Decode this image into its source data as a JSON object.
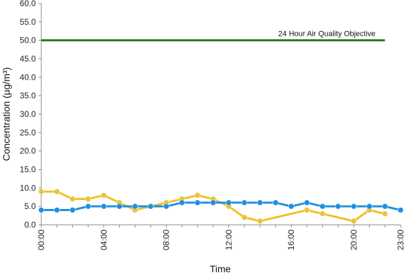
{
  "chart_data": {
    "type": "line",
    "title": "",
    "xlabel": "Time",
    "ylabel": "Concentration (µg/m³)",
    "ylim": [
      0,
      60
    ],
    "xlim": [
      0,
      23
    ],
    "y_ticks": [
      "0.0",
      "5.0",
      "10.0",
      "15.0",
      "20.0",
      "25.0",
      "30.0",
      "35.0",
      "40.0",
      "45.0",
      "50.0",
      "55.0",
      "60.0"
    ],
    "x_ticks": [
      {
        "hour": 0,
        "label": "00:00"
      },
      {
        "hour": 4,
        "label": "04:00"
      },
      {
        "hour": 8,
        "label": "08:00"
      },
      {
        "hour": 12,
        "label": "12:00"
      },
      {
        "hour": 16,
        "label": "16:00"
      },
      {
        "hour": 20,
        "label": "20:00"
      },
      {
        "hour": 23,
        "label": "23:00"
      }
    ],
    "grid": false,
    "legend": "none",
    "series": [
      {
        "color": "#f0c020",
        "marker_color": "#e8c43a",
        "x": [
          0,
          1,
          2,
          3,
          4,
          5,
          6,
          7,
          8,
          9,
          10,
          11,
          12,
          13,
          14,
          17,
          18,
          20,
          21,
          22
        ],
        "values": [
          9,
          9,
          7,
          7,
          8,
          6,
          4,
          5,
          6,
          7,
          8,
          7,
          5,
          2,
          1,
          4,
          3,
          1,
          4,
          3
        ]
      },
      {
        "color": "#1e90e0",
        "marker_color": "#1e90e0",
        "x": [
          0,
          1,
          2,
          3,
          4,
          5,
          6,
          7,
          8,
          9,
          10,
          11,
          12,
          13,
          14,
          15,
          16,
          17,
          18,
          19,
          20,
          21,
          22,
          23
        ],
        "values": [
          4,
          4,
          4,
          5,
          5,
          5,
          5,
          5,
          5,
          6,
          6,
          6,
          6,
          6,
          6,
          6,
          5,
          6,
          5,
          5,
          5,
          5,
          5,
          4
        ]
      }
    ],
    "reference_line": {
      "label": "24 Hour Air Quality Objective",
      "value": 50,
      "x_start": 0,
      "x_end": 22,
      "color": "#1f7a1f"
    }
  }
}
